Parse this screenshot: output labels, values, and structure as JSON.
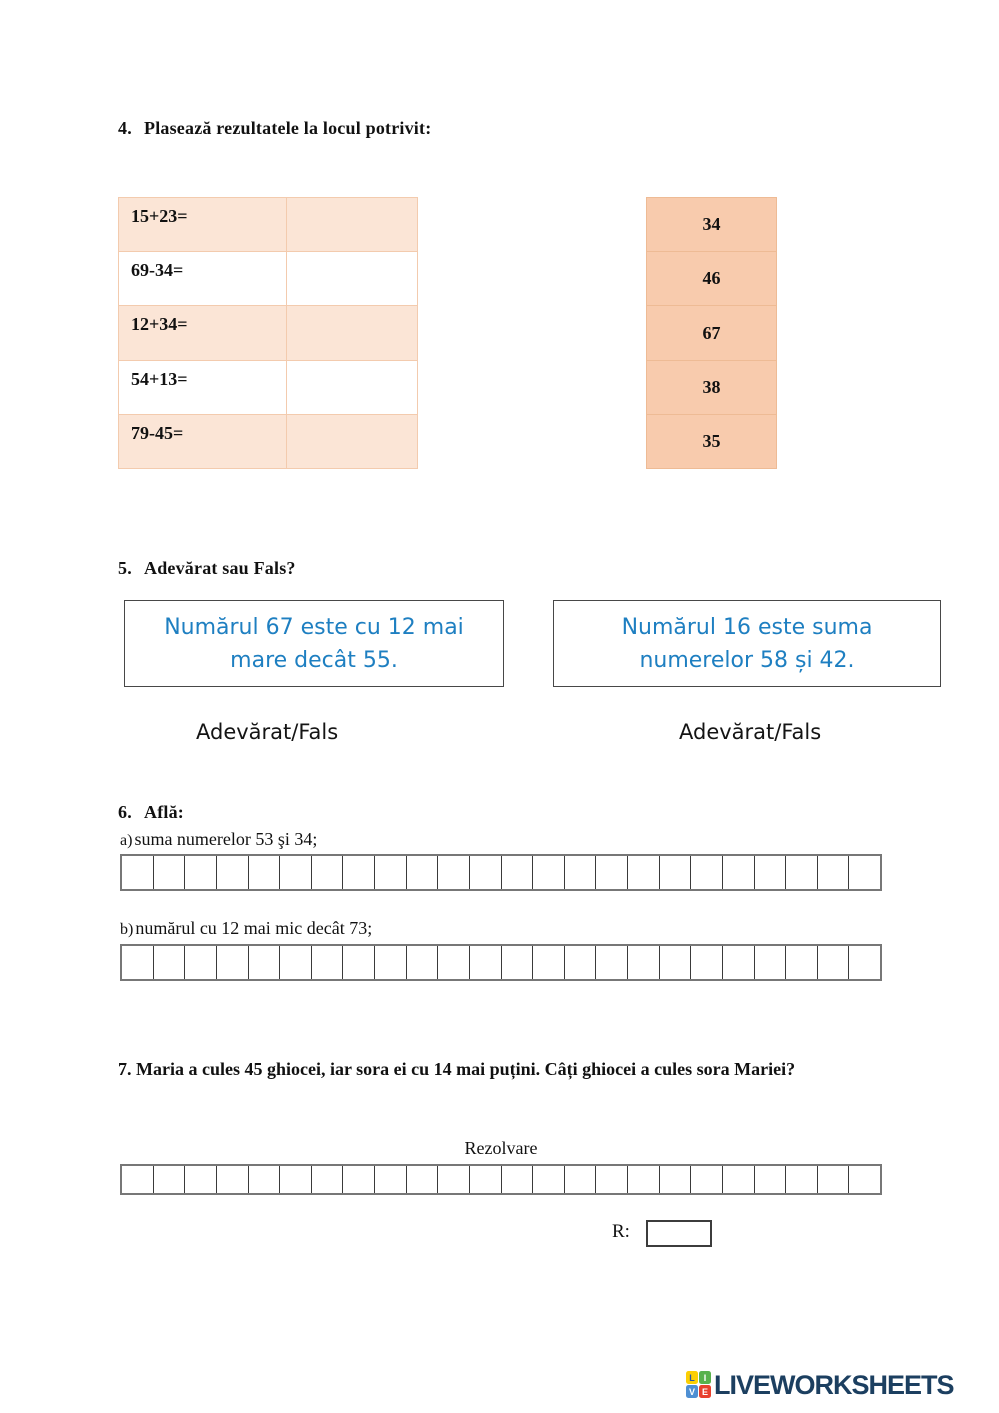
{
  "colors": {
    "row_peach_light": "#FBE5D6",
    "answer_peach": "#F8CBAD",
    "statement_blue": "#1E7FC1",
    "brand_navy": "#1C3F60",
    "tile_yellow": "#FCCF03",
    "tile_green": "#58B14C",
    "tile_blue": "#4E8FD3",
    "tile_red": "#E8402D"
  },
  "section4": {
    "number": "4.",
    "title": "Plasează rezultatele la locul potrivit:",
    "problems": [
      {
        "label": "15+23="
      },
      {
        "label": "69-34="
      },
      {
        "label": "12+34="
      },
      {
        "label": "54+13="
      },
      {
        "label": "79-45="
      }
    ],
    "answers": [
      "34",
      "46",
      "67",
      "38",
      "35"
    ]
  },
  "section5": {
    "number": "5.",
    "title": "Adevărat sau Fals?",
    "statements": [
      {
        "line1": "Numărul 67 este cu 12 mai",
        "line2": "mare decât 55.",
        "choice": "Adevărat/Fals"
      },
      {
        "line1": "Numărul 16 este suma",
        "line2": "numerelor 58 și 42.",
        "choice": "Adevărat/Fals"
      }
    ]
  },
  "section6": {
    "number": "6.",
    "title": "Află:",
    "items": [
      {
        "prefix": "a)",
        "text": "suma numerelor 53 şi 34;",
        "cells": 24
      },
      {
        "prefix": "b)",
        "text": "numărul cu 12 mai mic decât 73;",
        "cells": 24
      }
    ]
  },
  "section7": {
    "text": "7. Maria a cules 45 ghiocei, iar sora ei cu 14 mai puțini. Câți ghiocei a cules sora Mariei?",
    "solve_label": "Rezolvare",
    "cells": 24,
    "answer_label": "R:"
  },
  "footer": {
    "tiles": [
      {
        "letter": "L"
      },
      {
        "letter": "I"
      },
      {
        "letter": "V"
      },
      {
        "letter": "E"
      }
    ],
    "brand": "LIVEWORKSHEETS"
  }
}
